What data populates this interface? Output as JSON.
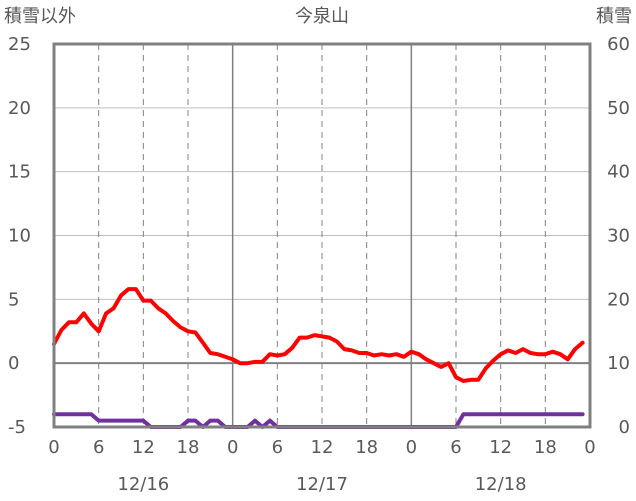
{
  "chart_data": {
    "type": "line",
    "title": "今泉山",
    "left_axis_label": "積雪以外",
    "right_axis_label": "積雪",
    "left_ylim": [
      -5,
      25
    ],
    "left_yticks": [
      "25",
      "20",
      "15",
      "10",
      "5",
      "0",
      "-5"
    ],
    "right_ylim": [
      0,
      60
    ],
    "right_yticks": [
      "60",
      "50",
      "40",
      "30",
      "20",
      "10",
      "0"
    ],
    "xlim": [
      0,
      72
    ],
    "x_tick_labels": [
      "0",
      "6",
      "12",
      "18",
      "0",
      "6",
      "12",
      "18",
      "0",
      "6",
      "12",
      "18",
      "0"
    ],
    "date_labels": [
      "12/16",
      "12/17",
      "12/18"
    ],
    "grid": true,
    "series": [
      {
        "axis": "left",
        "color": "#ff0000",
        "x": [
          0,
          1,
          2,
          3,
          4,
          5,
          6,
          7,
          8,
          9,
          10,
          11,
          12,
          13,
          14,
          15,
          16,
          17,
          18,
          19,
          20,
          21,
          22,
          23,
          24,
          25,
          26,
          27,
          28,
          29,
          30,
          31,
          32,
          33,
          34,
          35,
          36,
          37,
          38,
          39,
          40,
          41,
          42,
          43,
          44,
          45,
          46,
          47,
          48,
          49,
          50,
          51,
          52,
          53,
          54,
          55,
          56,
          57,
          58,
          59,
          60,
          61,
          62,
          63,
          64,
          65,
          66,
          67,
          68,
          69,
          70,
          71
        ],
        "values": [
          1.5,
          2.6,
          3.2,
          3.2,
          3.9,
          3.1,
          2.5,
          3.9,
          4.3,
          5.3,
          5.8,
          5.8,
          4.9,
          4.9,
          4.3,
          3.9,
          3.3,
          2.8,
          2.5,
          2.4,
          1.6,
          0.8,
          0.7,
          0.5,
          0.3,
          0.0,
          0.0,
          0.1,
          0.1,
          0.7,
          0.6,
          0.7,
          1.2,
          2.0,
          2.0,
          2.2,
          2.1,
          2.0,
          1.7,
          1.1,
          1.0,
          0.8,
          0.8,
          0.6,
          0.7,
          0.6,
          0.7,
          0.5,
          0.9,
          0.7,
          0.3,
          0.0,
          -0.3,
          0.0,
          -1.1,
          -1.4,
          -1.3,
          -1.3,
          -0.4,
          0.2,
          0.7,
          1.0,
          0.8,
          1.1,
          0.8,
          0.7,
          0.7,
          0.9,
          0.7,
          0.3,
          1.1,
          1.6
        ]
      },
      {
        "axis": "right",
        "color": "#7030a0",
        "x": [
          0,
          1,
          2,
          3,
          4,
          5,
          6,
          7,
          8,
          9,
          10,
          11,
          12,
          13,
          14,
          15,
          16,
          17,
          18,
          19,
          20,
          21,
          22,
          23,
          24,
          25,
          26,
          27,
          28,
          29,
          30,
          31,
          32,
          33,
          34,
          35,
          36,
          37,
          38,
          39,
          40,
          41,
          42,
          43,
          44,
          45,
          46,
          47,
          48,
          49,
          50,
          51,
          52,
          53,
          54,
          55,
          56,
          57,
          58,
          59,
          60,
          61,
          62,
          63,
          64,
          65,
          66,
          67,
          68,
          69,
          70,
          71
        ],
        "values": [
          2,
          2,
          2,
          2,
          2,
          2,
          1,
          1,
          1,
          1,
          1,
          1,
          1,
          0,
          0,
          0,
          0,
          0,
          1,
          1,
          0,
          1,
          1,
          0,
          0,
          0,
          0,
          1,
          0,
          1,
          0,
          0,
          0,
          0,
          0,
          0,
          0,
          0,
          0,
          0,
          0,
          0,
          0,
          0,
          0,
          0,
          0,
          0,
          0,
          0,
          0,
          0,
          0,
          0,
          0,
          2,
          2,
          2,
          2,
          2,
          2,
          2,
          2,
          2,
          2,
          2,
          2,
          2,
          2,
          2,
          2,
          2
        ]
      }
    ]
  }
}
